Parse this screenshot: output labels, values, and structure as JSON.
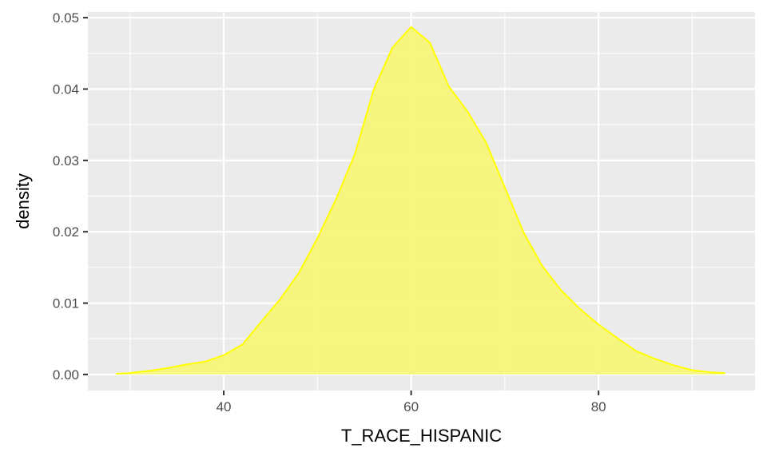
{
  "chart_data": {
    "type": "area",
    "title": "",
    "xlabel": "T_RACE_HISPANIC",
    "ylabel": "density",
    "xlim": [
      25.5,
      96.7
    ],
    "ylim": [
      -0.00225,
      0.0508
    ],
    "x_major_ticks": [
      40,
      60,
      80
    ],
    "x_tick_labels": [
      "40",
      "60",
      "80"
    ],
    "x_minor_ticks": [
      30,
      50,
      70,
      90
    ],
    "y_major_ticks": [
      0.0,
      0.01,
      0.02,
      0.03,
      0.04,
      0.05
    ],
    "y_tick_labels": [
      "0.00",
      "0.01",
      "0.02",
      "0.03",
      "0.04",
      "0.05"
    ],
    "grid": true,
    "legend": "none",
    "colors": {
      "panel": "#ebebeb",
      "grid": "#ffffff",
      "fill": "#f5f57a",
      "line": "#ffff00"
    },
    "series": [
      {
        "x": [
          28.5,
          30,
          32,
          34,
          36,
          38,
          40,
          42,
          44,
          46,
          48,
          50,
          52,
          54,
          56,
          58,
          60,
          62,
          64,
          66,
          68,
          70,
          72,
          74,
          76,
          78,
          80,
          82,
          84,
          86,
          88,
          90,
          92,
          93.5
        ],
        "y": [
          0.0001,
          0.0002,
          0.0005,
          0.0009,
          0.0014,
          0.0018,
          0.0027,
          0.0042,
          0.0074,
          0.0105,
          0.0142,
          0.0191,
          0.0246,
          0.0309,
          0.0399,
          0.0458,
          0.0487,
          0.0465,
          0.0404,
          0.0369,
          0.0325,
          0.0262,
          0.0199,
          0.0152,
          0.0118,
          0.0092,
          0.007,
          0.0051,
          0.0033,
          0.0022,
          0.0013,
          0.0006,
          0.0003,
          0.0002
        ]
      }
    ]
  }
}
